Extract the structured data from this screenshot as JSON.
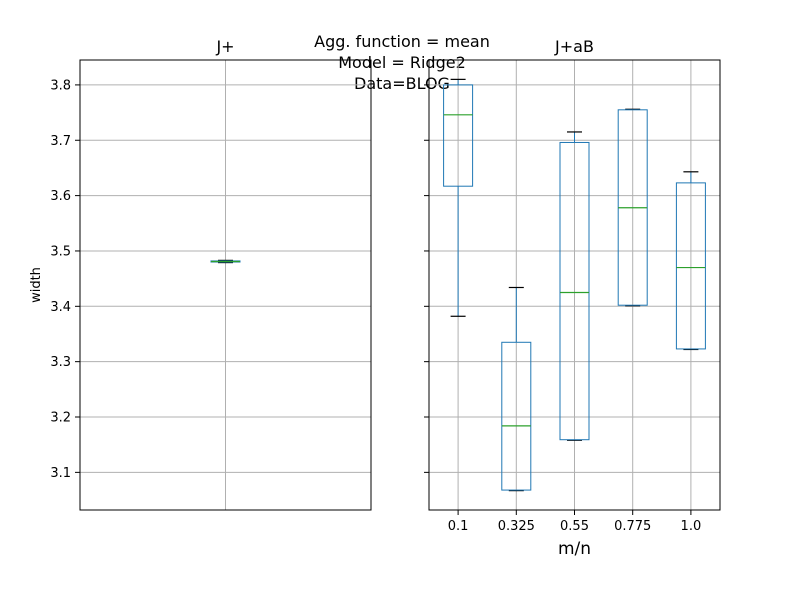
{
  "suptitle": {
    "lines": [
      "Agg. function = mean",
      "Model = Ridge2",
      "Data=BLOG"
    ]
  },
  "shared_y": {
    "label": "width",
    "range": [
      3.032,
      3.845
    ],
    "ticks": [
      3.1,
      3.2,
      3.3,
      3.4,
      3.5,
      3.6,
      3.7,
      3.8
    ],
    "tick_labels": [
      "3.1",
      "3.2",
      "3.3",
      "3.4",
      "3.5",
      "3.6",
      "3.7",
      "3.8"
    ]
  },
  "colors": {
    "box": "#1f77b4",
    "median": "#2ca02c",
    "whisker_cap": "#000000",
    "grid": "#b0b0b0",
    "axes": "#000000"
  },
  "chart_data": [
    {
      "type": "box",
      "title": "J+",
      "xlabel": "",
      "ylabel": "width",
      "grid": true,
      "categories": [
        ""
      ],
      "boxes": [
        {
          "min": 3.479,
          "q1": 3.48,
          "median": 3.481,
          "q3": 3.482,
          "max": 3.483
        }
      ]
    },
    {
      "type": "box",
      "title": "J+aB",
      "xlabel": "m/n",
      "ylabel": "",
      "grid": true,
      "categories": [
        "0.1",
        "0.325",
        "0.55",
        "0.775",
        "1.0"
      ],
      "boxes": [
        {
          "min": 3.382,
          "q1": 3.617,
          "median": 3.746,
          "q3": 3.8,
          "max": 3.81
        },
        {
          "min": 3.067,
          "q1": 3.068,
          "median": 3.184,
          "q3": 3.335,
          "max": 3.434
        },
        {
          "min": 3.158,
          "q1": 3.159,
          "median": 3.425,
          "q3": 3.696,
          "max": 3.715
        },
        {
          "min": 3.401,
          "q1": 3.402,
          "median": 3.578,
          "q3": 3.755,
          "max": 3.756
        },
        {
          "min": 3.322,
          "q1": 3.323,
          "median": 3.47,
          "q3": 3.623,
          "max": 3.643
        }
      ]
    }
  ]
}
